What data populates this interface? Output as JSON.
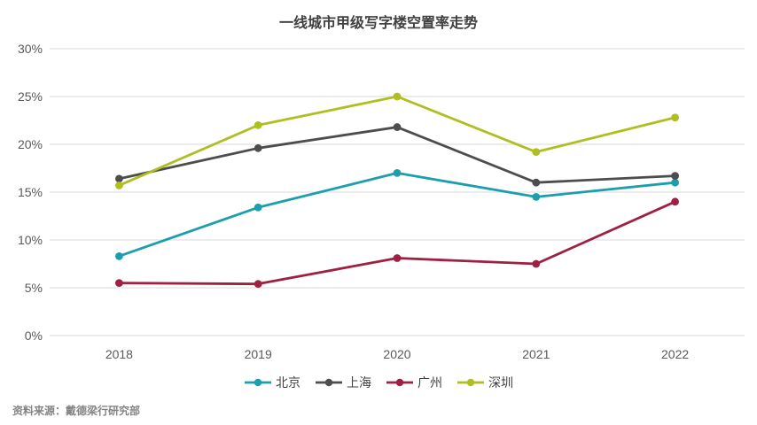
{
  "source_note": "资料来源：戴德梁行研究部",
  "chart_data": {
    "type": "line",
    "title": "一线城市甲级写字楼空置率走势",
    "categories": [
      "2018",
      "2019",
      "2020",
      "2021",
      "2022"
    ],
    "series": [
      {
        "id": "beijing",
        "name": "北京",
        "color": "#1C9FAD",
        "values": [
          8.3,
          13.4,
          17.0,
          14.5,
          16.0
        ]
      },
      {
        "id": "shanghai",
        "name": "上海",
        "color": "#4D4D4D",
        "values": [
          16.4,
          19.6,
          21.8,
          16.0,
          16.7
        ]
      },
      {
        "id": "guangzhou",
        "name": "广州",
        "color": "#9E2143",
        "values": [
          5.5,
          5.4,
          8.1,
          7.5,
          14.0
        ]
      },
      {
        "id": "shenzhen",
        "name": "深圳",
        "color": "#AFBE21",
        "values": [
          15.7,
          22.0,
          25.0,
          19.2,
          22.8
        ]
      }
    ],
    "xlabel": "",
    "ylabel": "",
    "ylim": [
      0,
      30
    ],
    "ytick_step": 5,
    "ytick_labels": [
      "0%",
      "5%",
      "10%",
      "15%",
      "20%",
      "25%",
      "30%"
    ],
    "grid": "horizontal",
    "grid_color": "#E6E6E6",
    "legend_position": "bottom",
    "marker": "circle"
  }
}
